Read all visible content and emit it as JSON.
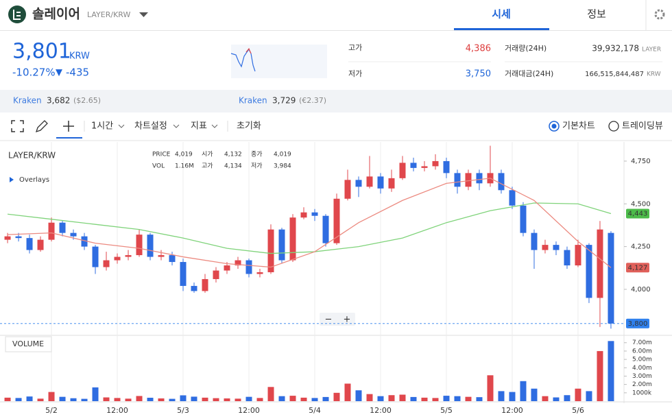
{
  "header": {
    "title": "솔레이어",
    "pair": "LAYER/KRW",
    "tabs": [
      "시세",
      "정보"
    ]
  },
  "ticker": {
    "price": "3,801",
    "unit": "KRW",
    "change_pct": "-10.27%",
    "arrow": "▼",
    "change": "-435"
  },
  "stats": {
    "high_label": "고가",
    "high": "4,386",
    "low_label": "저가",
    "low": "3,750",
    "volume_label": "거래량(24H)",
    "volume": "39,932,178",
    "volume_unit": "LAYER",
    "amount_label": "거래대금(24H)",
    "amount": "166,515,844,487",
    "amount_unit": "KRW"
  },
  "exchanges": [
    {
      "name": "Kraken",
      "price": "3,682",
      "fx": "($2.65)"
    },
    {
      "name": "Kraken",
      "price": "3,729",
      "fx": "(€2.37)"
    }
  ],
  "toolbar": {
    "interval": "1시간",
    "settings": "차트설정",
    "indicators": "지표",
    "reset": "초기화",
    "basic": "기본차트",
    "tradingview": "트레이딩뷰"
  },
  "zoom_controls": [
    "−",
    "+"
  ],
  "chart_data": [
    {
      "type": "candlestick",
      "title": "LAYER/KRW",
      "overlays": "Overlays",
      "info": [
        {
          "label": "PRICE",
          "value": "4,019"
        },
        {
          "label": "시가",
          "value": "4,132"
        },
        {
          "label": "종가",
          "value": "4,019"
        },
        {
          "label": "VOL",
          "value": "1.16M"
        },
        {
          "label": "고가",
          "value": "4,134"
        },
        {
          "label": "저가",
          "value": "3,984"
        }
      ],
      "open": [
        4290,
        4310,
        4300,
        4230,
        4290,
        4390,
        4330,
        4310,
        4250,
        4130,
        4170,
        4190,
        4200,
        4320,
        4190,
        4200,
        4160,
        4020,
        3990,
        4060,
        4110,
        4140,
        4170,
        4090,
        4100,
        4350,
        4170,
        4420,
        4450,
        4430,
        4270,
        4530,
        4640,
        4600,
        4660,
        4590,
        4650,
        4740,
        4710,
        4720,
        4750,
        4680,
        4600,
        4680,
        4620,
        4680,
        4580,
        4490,
        4330,
        4230,
        4260,
        4230,
        4140,
        4260,
        3950,
        4330
      ],
      "close": [
        4310,
        4300,
        4230,
        4290,
        4390,
        4330,
        4310,
        4250,
        4130,
        4170,
        4190,
        4200,
        4320,
        4190,
        4200,
        4160,
        4020,
        3990,
        4060,
        4110,
        4140,
        4170,
        4090,
        4100,
        4350,
        4170,
        4420,
        4450,
        4430,
        4270,
        4530,
        4640,
        4600,
        4660,
        4590,
        4650,
        4740,
        4710,
        4720,
        4750,
        4680,
        4600,
        4680,
        4620,
        4680,
        4580,
        4490,
        4330,
        4230,
        4260,
        4230,
        4140,
        4260,
        3950,
        4350,
        3800
      ],
      "high": [
        4330,
        4330,
        4320,
        4310,
        4420,
        4400,
        4350,
        4330,
        4260,
        4220,
        4210,
        4230,
        4350,
        4330,
        4230,
        4220,
        4180,
        4040,
        4090,
        4130,
        4160,
        4190,
        4180,
        4120,
        4380,
        4360,
        4440,
        4480,
        4470,
        4440,
        4560,
        4700,
        4660,
        4780,
        4680,
        4700,
        4780,
        4770,
        4750,
        4790,
        4770,
        4700,
        4700,
        4700,
        4840,
        4700,
        4600,
        4510,
        4350,
        4290,
        4280,
        4250,
        4290,
        4270,
        4400,
        4340
      ],
      "low": [
        4270,
        4280,
        4210,
        4220,
        4280,
        4310,
        4290,
        4230,
        4090,
        4110,
        4150,
        4170,
        4190,
        4170,
        4170,
        4140,
        3990,
        3980,
        3980,
        4040,
        4090,
        4120,
        4070,
        4070,
        4090,
        4150,
        4160,
        4410,
        4400,
        4250,
        4260,
        4520,
        4540,
        4590,
        4560,
        4570,
        4640,
        4690,
        4690,
        4700,
        4650,
        4560,
        4580,
        4580,
        4600,
        4560,
        4470,
        4310,
        4120,
        4210,
        4200,
        4120,
        4130,
        3920,
        3780,
        3770
      ],
      "up_color": "#e0474c",
      "down_color": "#2f6de1",
      "lines": [
        {
          "color": "#7fd37a",
          "x": [
            0,
            4,
            8,
            12,
            16,
            20,
            24,
            28,
            32,
            36,
            40,
            44,
            48,
            52,
            55
          ],
          "values": [
            4440,
            4410,
            4380,
            4350,
            4300,
            4240,
            4210,
            4220,
            4250,
            4300,
            4390,
            4460,
            4505,
            4500,
            4443
          ],
          "label": "4,443",
          "label_color": "#4cbb4a"
        },
        {
          "color": "#ec8a80",
          "x": [
            0,
            4,
            8,
            12,
            16,
            20,
            24,
            28,
            32,
            36,
            40,
            44,
            48,
            52,
            55
          ],
          "values": [
            4320,
            4330,
            4270,
            4240,
            4190,
            4150,
            4130,
            4220,
            4390,
            4520,
            4620,
            4650,
            4520,
            4280,
            4127
          ],
          "label": "4,127",
          "label_color": "#e0605a"
        }
      ],
      "current": {
        "value": 3800,
        "label": "3,800",
        "color": "#2f80ed"
      },
      "xlim": [
        -0.69,
        56.19
      ],
      "ylim": [
        3735,
        4862
      ],
      "xticks": [
        {
          "value": 4,
          "label": "5/2"
        },
        {
          "value": 10,
          "label": "12:00"
        },
        {
          "value": 16,
          "label": "5/3"
        },
        {
          "value": 22,
          "label": "12:00"
        },
        {
          "value": 28,
          "label": "5/4"
        },
        {
          "value": 34,
          "label": "12:00"
        },
        {
          "value": 40,
          "label": "5/5"
        },
        {
          "value": 46,
          "label": "12:00"
        },
        {
          "value": 52,
          "label": "5/6"
        }
      ],
      "yticks": [
        {
          "value": 4000,
          "label": "4,000"
        },
        {
          "value": 4250,
          "label": "4,250"
        },
        {
          "value": 4500,
          "label": "4,500"
        },
        {
          "value": 4750,
          "label": "4,750"
        }
      ],
      "grid": "x"
    },
    {
      "type": "bar",
      "title": "VOLUME",
      "values": [
        420000,
        380000,
        560000,
        300000,
        1100000,
        520000,
        350000,
        280000,
        1650000,
        450000,
        380000,
        300000,
        620000,
        410000,
        330000,
        280000,
        700000,
        540000,
        420000,
        360000,
        330000,
        300000,
        520000,
        380000,
        1700000,
        600000,
        650000,
        420000,
        380000,
        500000,
        1000000,
        2100000,
        1300000,
        850000,
        600000,
        720000,
        780000,
        500000,
        420000,
        380000,
        650000,
        600000,
        520000,
        480000,
        3100000,
        1200000,
        1100000,
        2400000,
        1500000,
        600000,
        450000,
        720000,
        1500000,
        1200000,
        6000000,
        7200000
      ],
      "ylim": [
        0,
        7800000
      ],
      "yticks": [
        {
          "value": 1000000,
          "label": "1000k"
        },
        {
          "value": 2000000,
          "label": "2.00m"
        },
        {
          "value": 3000000,
          "label": "3.00m"
        },
        {
          "value": 4000000,
          "label": "4.00m"
        },
        {
          "value": 5000000,
          "label": "5.00m"
        },
        {
          "value": 6000000,
          "label": "6.00m"
        },
        {
          "value": 7000000,
          "label": "7.00m"
        }
      ]
    }
  ]
}
